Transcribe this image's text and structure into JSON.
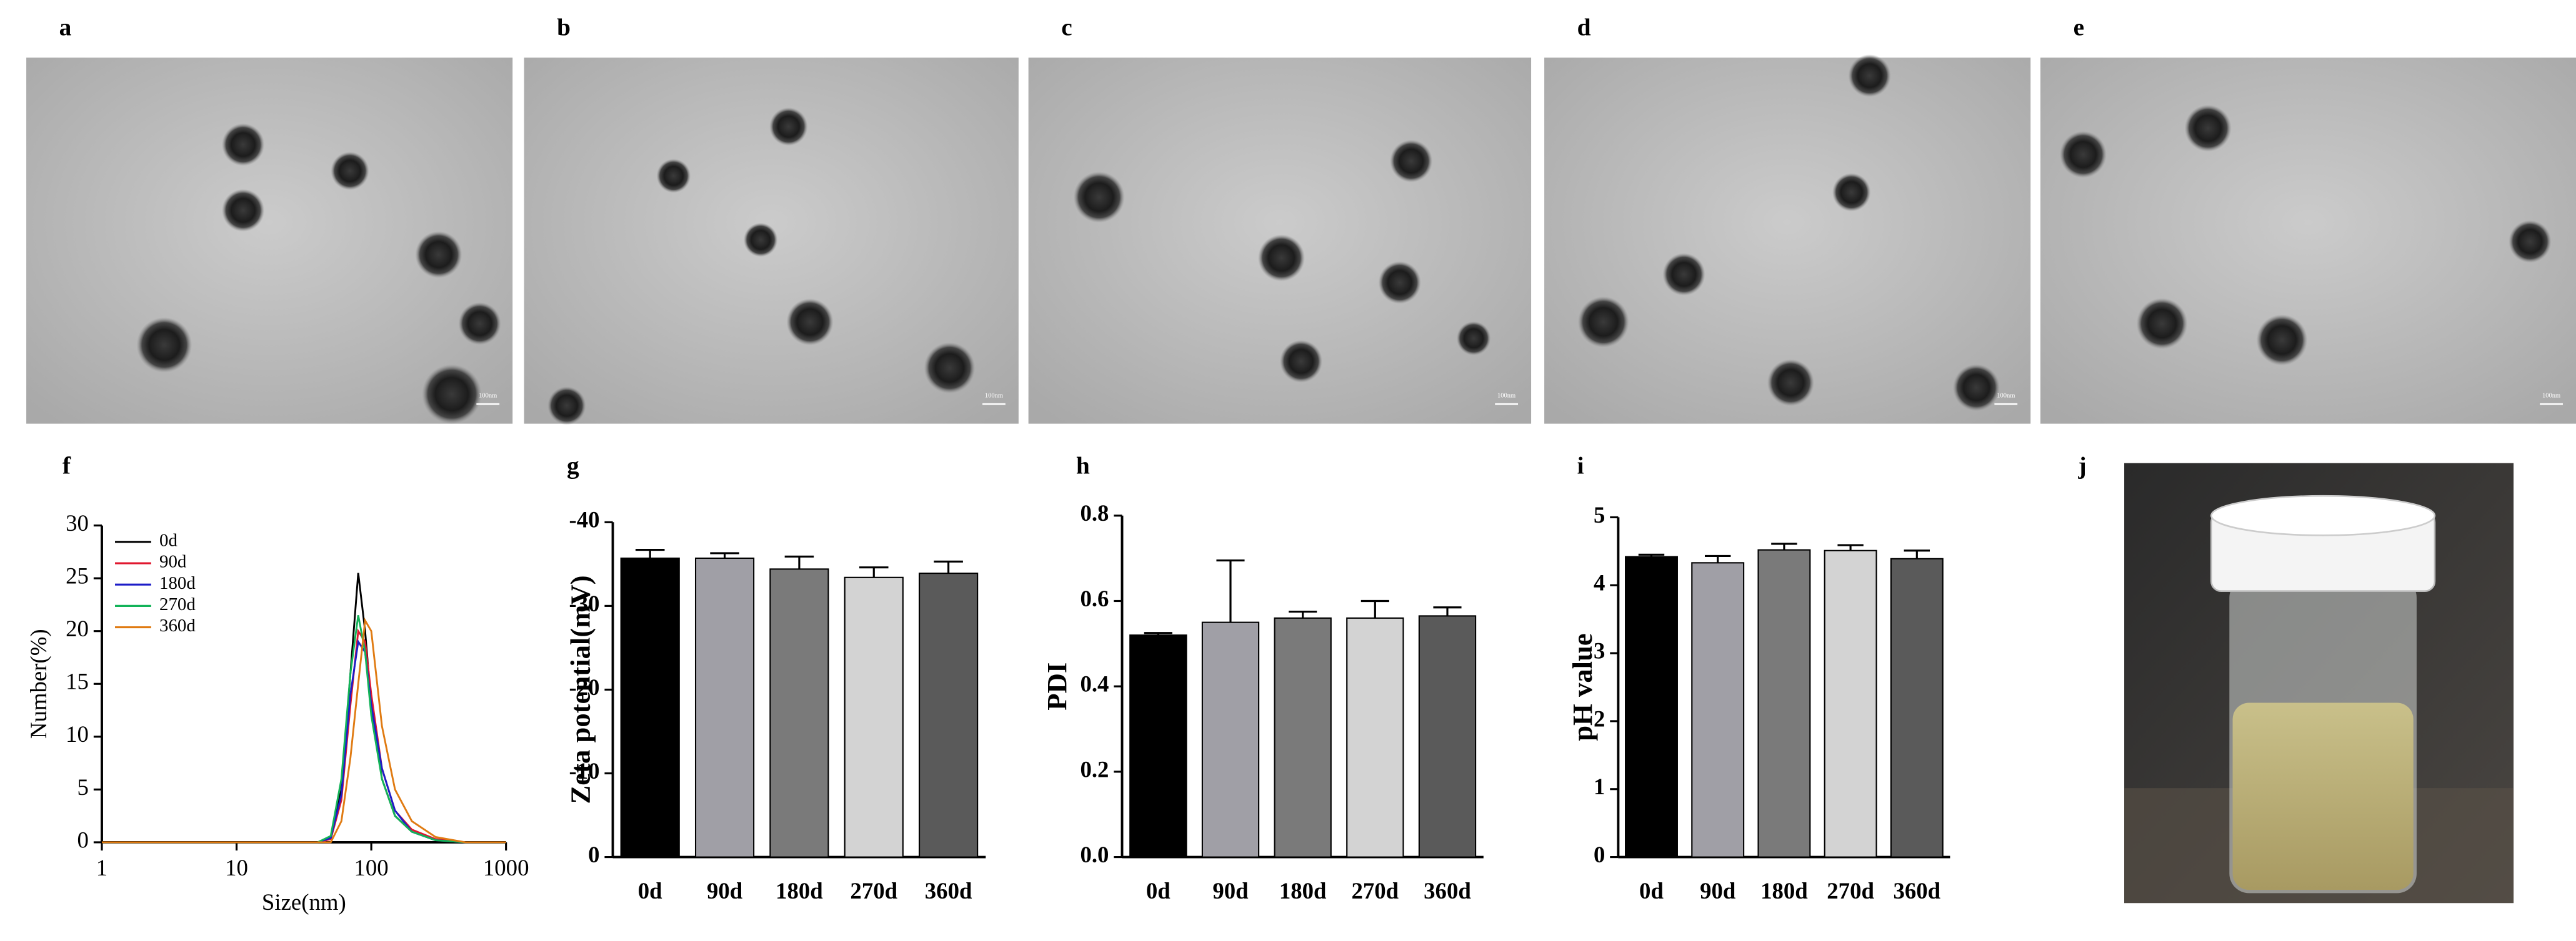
{
  "image_panels": [
    {
      "label": "a",
      "scale_bar": "100nm"
    },
    {
      "label": "b",
      "scale_bar": "100nm"
    },
    {
      "label": "c",
      "scale_bar": "100nm"
    },
    {
      "label": "d",
      "scale_bar": "100nm"
    },
    {
      "label": "e",
      "scale_bar": "100nm"
    }
  ],
  "photo_panel": {
    "label": "j"
  },
  "chart_data": [
    {
      "type": "line",
      "panel_label": "f",
      "x_label": "Size(nm)",
      "y_label": "Number(%)",
      "x": [
        1,
        40,
        50,
        60,
        70,
        80,
        90,
        100,
        120,
        150,
        200,
        300,
        500,
        1000
      ],
      "xscale": "log",
      "xlim": [
        1,
        1000
      ],
      "xticks": [
        1,
        10,
        100,
        1000
      ],
      "ylim": [
        0,
        30
      ],
      "yticks": [
        0,
        5,
        10,
        15,
        20,
        25,
        30
      ],
      "legend": "upper left",
      "series": [
        {
          "name": "0d",
          "color": "#000000",
          "values": [
            0,
            0,
            0.5,
            5,
            16,
            25.5,
            20,
            13,
            6,
            2.5,
            1,
            0.2,
            0,
            0
          ]
        },
        {
          "name": "90d",
          "color": "#e0182f",
          "values": [
            0,
            0,
            0.3,
            4,
            13,
            20,
            19,
            14,
            7,
            3,
            1.2,
            0.3,
            0,
            0
          ]
        },
        {
          "name": "180d",
          "color": "#1d1dc8",
          "values": [
            0,
            0,
            0.4,
            4.5,
            14,
            19,
            18,
            13,
            7,
            3,
            1,
            0.2,
            0,
            0
          ]
        },
        {
          "name": "270d",
          "color": "#13b359",
          "values": [
            0,
            0,
            0.6,
            6,
            16,
            21.5,
            18,
            12,
            6,
            2.5,
            1,
            0.2,
            0,
            0
          ]
        },
        {
          "name": "360d",
          "color": "#e07b12",
          "values": [
            0,
            0,
            0,
            2,
            8,
            15,
            21,
            20,
            11,
            5,
            2,
            0.5,
            0,
            0
          ]
        }
      ]
    },
    {
      "type": "bar",
      "panel_label": "g",
      "y_label": "Zeta potential(mV)",
      "categories": [
        "0d",
        "90d",
        "180d",
        "270d",
        "360d"
      ],
      "values": [
        -35.7,
        -35.7,
        -34.4,
        -33.4,
        -33.9
      ],
      "errors": [
        1,
        0.6,
        1.5,
        1.2,
        1.4
      ],
      "colors": [
        "#000000",
        "#a09fa6",
        "#7a7a7a",
        "#d3d3d3",
        "#5a5a5a"
      ],
      "ylim": [
        0,
        -40
      ],
      "yticks": [
        0,
        -10,
        -20,
        -30,
        -40
      ]
    },
    {
      "type": "bar",
      "panel_label": "h",
      "y_label": "PDI",
      "categories": [
        "0d",
        "90d",
        "180d",
        "270d",
        "360d"
      ],
      "values": [
        0.52,
        0.55,
        0.56,
        0.56,
        0.565
      ],
      "errors": [
        0.005,
        0.145,
        0.015,
        0.04,
        0.02
      ],
      "colors": [
        "#000000",
        "#a09fa6",
        "#7a7a7a",
        "#d3d3d3",
        "#5a5a5a"
      ],
      "ylim": [
        0,
        0.8
      ],
      "yticks": [
        {
          "value": 0,
          "label": "0.0"
        },
        0.2,
        0.4,
        0.6,
        0.8
      ]
    },
    {
      "type": "bar",
      "panel_label": "i",
      "y_label": "pH value",
      "categories": [
        "0d",
        "90d",
        "180d",
        "270d",
        "360d"
      ],
      "values": [
        4.42,
        4.33,
        4.52,
        4.51,
        4.39
      ],
      "errors": [
        0.03,
        0.1,
        0.09,
        0.08,
        0.12
      ],
      "colors": [
        "#000000",
        "#a09fa6",
        "#7a7a7a",
        "#d3d3d3",
        "#5a5a5a"
      ],
      "ylim": [
        0,
        5
      ],
      "yticks": [
        0,
        1,
        2,
        3,
        4,
        5
      ]
    }
  ]
}
